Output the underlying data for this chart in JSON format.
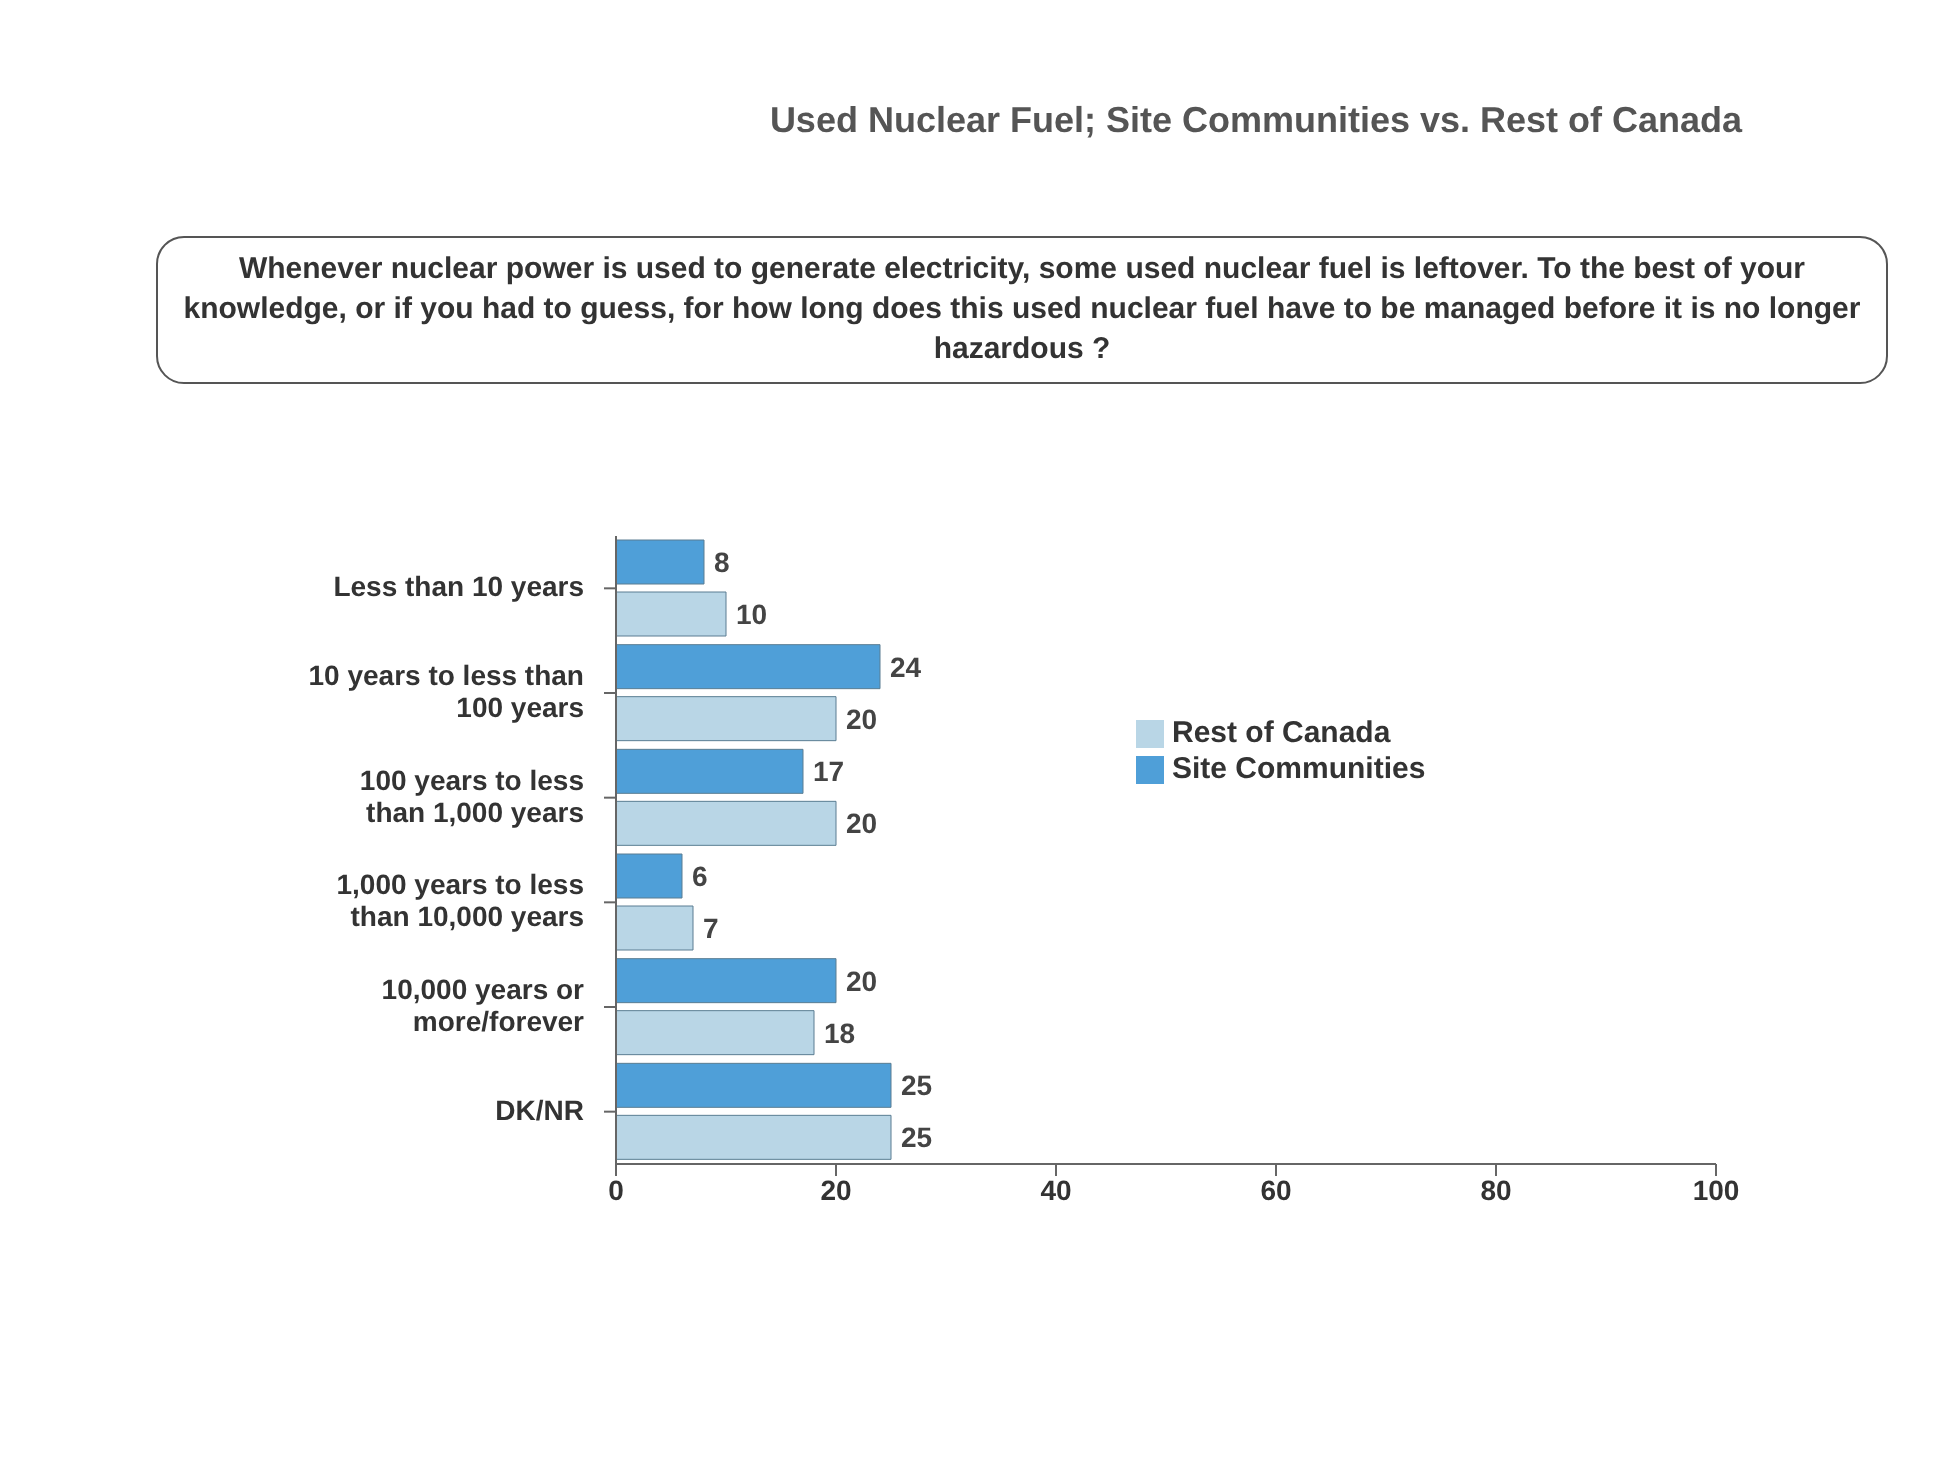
{
  "chart_data": {
    "type": "bar",
    "orientation": "horizontal",
    "title": "Used Nuclear Fuel; Site Communities vs. Rest of Canada",
    "subtitle": "Whenever nuclear power is used to generate electricity, some used nuclear fuel is leftover. To the best of your knowledge, or if you had to guess, for how long does this used nuclear fuel have to be managed before it is no longer hazardous ?",
    "categories": [
      "Less than 10 years",
      "10 years to less than 100 years",
      "100 years to less than 1,000 years",
      "1,000 years to less than 10,000 years",
      "10,000 years or more/forever",
      "DK/NR"
    ],
    "series": [
      {
        "name": "Site Communities",
        "color": "#4f9fd8",
        "values": [
          8,
          24,
          17,
          6,
          20,
          25
        ]
      },
      {
        "name": "Rest of Canada",
        "color": "#b9d6e6",
        "values": [
          10,
          20,
          20,
          7,
          18,
          25
        ]
      }
    ],
    "xlim": [
      0,
      100
    ],
    "xticks": [
      0,
      20,
      40,
      60,
      80,
      100
    ],
    "data_labels": true,
    "legend": "right",
    "grid": false
  }
}
